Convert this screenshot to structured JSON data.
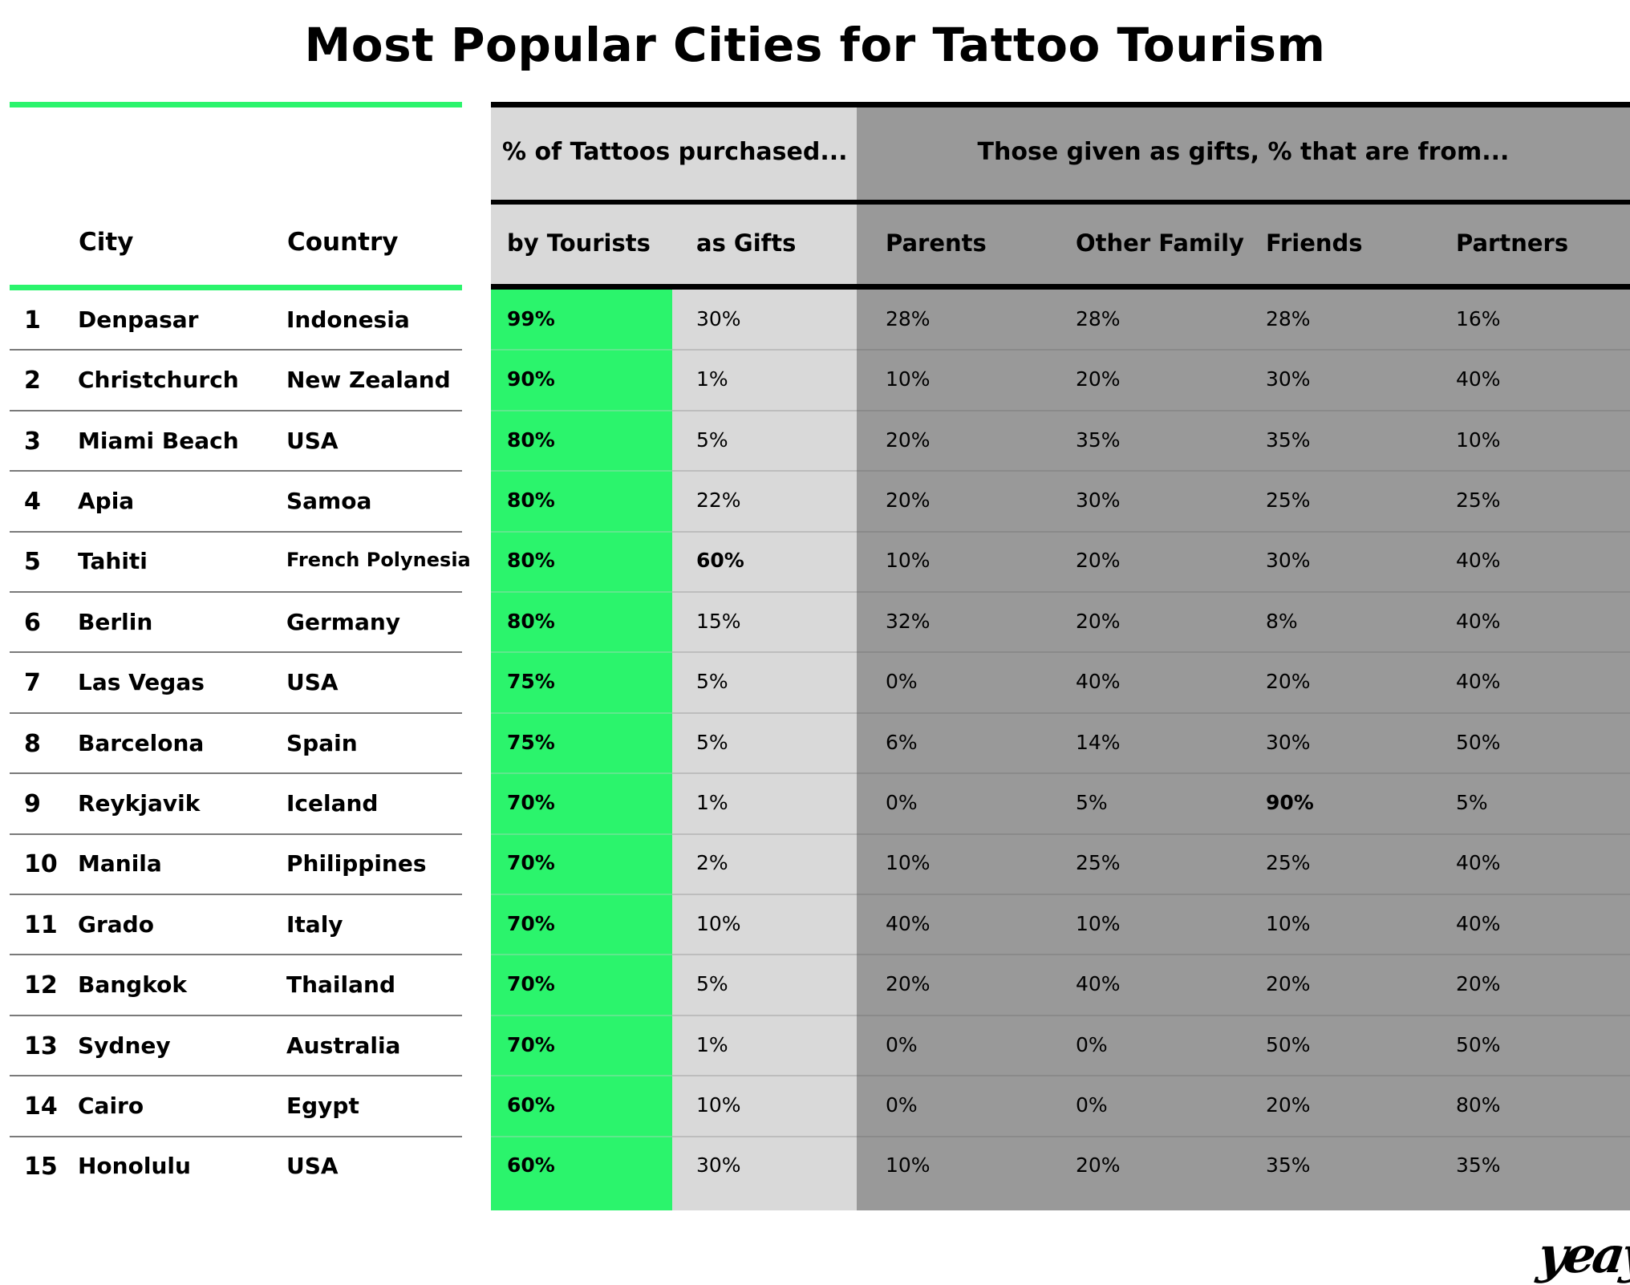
{
  "title": "Most Popular Cities for Tattoo Tourism",
  "colors": {
    "accent_green": "#2bf46c",
    "light_gray": "#d9d9d9",
    "dark_gray": "#999999",
    "rule": "#000000"
  },
  "headers": {
    "city": "City",
    "country": "Country",
    "group_purchased": "% of Tattoos purchased...",
    "group_gifts": "Those given as gifts, % that are from...",
    "by_tourists": "by Tourists",
    "as_gifts": "as Gifts",
    "parents": "Parents",
    "other_family": "Other Family",
    "friends": "Friends",
    "partners": "Partners"
  },
  "logo_text": "yeay",
  "chart_data": {
    "type": "table",
    "title": "Most Popular Cities for Tattoo Tourism",
    "columns": [
      "#",
      "City",
      "Country",
      "by Tourists",
      "as Gifts",
      "Parents",
      "Other Family",
      "Friends",
      "Partners"
    ],
    "rows": [
      {
        "rank": "1",
        "city": "Denpasar",
        "country": "Indonesia",
        "tourists": "99%",
        "gifts": "30%",
        "parents": "28%",
        "other_family": "28%",
        "friends": "28%",
        "partners": "16%"
      },
      {
        "rank": "2",
        "city": "Christchurch",
        "country": "New Zealand",
        "tourists": "90%",
        "gifts": "1%",
        "parents": "10%",
        "other_family": "20%",
        "friends": "30%",
        "partners": "40%"
      },
      {
        "rank": "3",
        "city": "Miami Beach",
        "country": "USA",
        "tourists": "80%",
        "gifts": "5%",
        "parents": "20%",
        "other_family": "35%",
        "friends": "35%",
        "partners": "10%"
      },
      {
        "rank": "4",
        "city": "Apia",
        "country": "Samoa",
        "tourists": "80%",
        "gifts": "22%",
        "parents": "20%",
        "other_family": "30%",
        "friends": "25%",
        "partners": "25%"
      },
      {
        "rank": "5",
        "city": "Tahiti",
        "country": "French Polynesia",
        "tourists": "80%",
        "gifts": "60%",
        "parents": "10%",
        "other_family": "20%",
        "friends": "30%",
        "partners": "40%"
      },
      {
        "rank": "6",
        "city": "Berlin",
        "country": "Germany",
        "tourists": "80%",
        "gifts": "15%",
        "parents": "32%",
        "other_family": "20%",
        "friends": "8%",
        "partners": "40%"
      },
      {
        "rank": "7",
        "city": "Las Vegas",
        "country": "USA",
        "tourists": "75%",
        "gifts": "5%",
        "parents": "0%",
        "other_family": "40%",
        "friends": "20%",
        "partners": "40%"
      },
      {
        "rank": "8",
        "city": "Barcelona",
        "country": "Spain",
        "tourists": "75%",
        "gifts": "5%",
        "parents": "6%",
        "other_family": "14%",
        "friends": "30%",
        "partners": "50%"
      },
      {
        "rank": "9",
        "city": "Reykjavik",
        "country": "Iceland",
        "tourists": "70%",
        "gifts": "1%",
        "parents": "0%",
        "other_family": "5%",
        "friends": "90%",
        "partners": "5%"
      },
      {
        "rank": "10",
        "city": "Manila",
        "country": "Philippines",
        "tourists": "70%",
        "gifts": "2%",
        "parents": "10%",
        "other_family": "25%",
        "friends": "25%",
        "partners": "40%"
      },
      {
        "rank": "11",
        "city": "Grado",
        "country": "Italy",
        "tourists": "70%",
        "gifts": "10%",
        "parents": "40%",
        "other_family": "10%",
        "friends": "10%",
        "partners": "40%"
      },
      {
        "rank": "12",
        "city": "Bangkok",
        "country": "Thailand",
        "tourists": "70%",
        "gifts": "5%",
        "parents": "20%",
        "other_family": "40%",
        "friends": "20%",
        "partners": "20%"
      },
      {
        "rank": "13",
        "city": "Sydney",
        "country": "Australia",
        "tourists": "70%",
        "gifts": "1%",
        "parents": "0%",
        "other_family": "0%",
        "friends": "50%",
        "partners": "50%"
      },
      {
        "rank": "14",
        "city": "Cairo",
        "country": "Egypt",
        "tourists": "60%",
        "gifts": "10%",
        "parents": "0%",
        "other_family": "0%",
        "friends": "20%",
        "partners": "80%"
      },
      {
        "rank": "15",
        "city": "Honolulu",
        "country": "USA",
        "tourists": "60%",
        "gifts": "30%",
        "parents": "10%",
        "other_family": "20%",
        "friends": "35%",
        "partners": "35%"
      }
    ],
    "emphasized_cells": [
      {
        "row": 5,
        "column": "as Gifts"
      },
      {
        "row": 9,
        "column": "Friends"
      }
    ]
  }
}
